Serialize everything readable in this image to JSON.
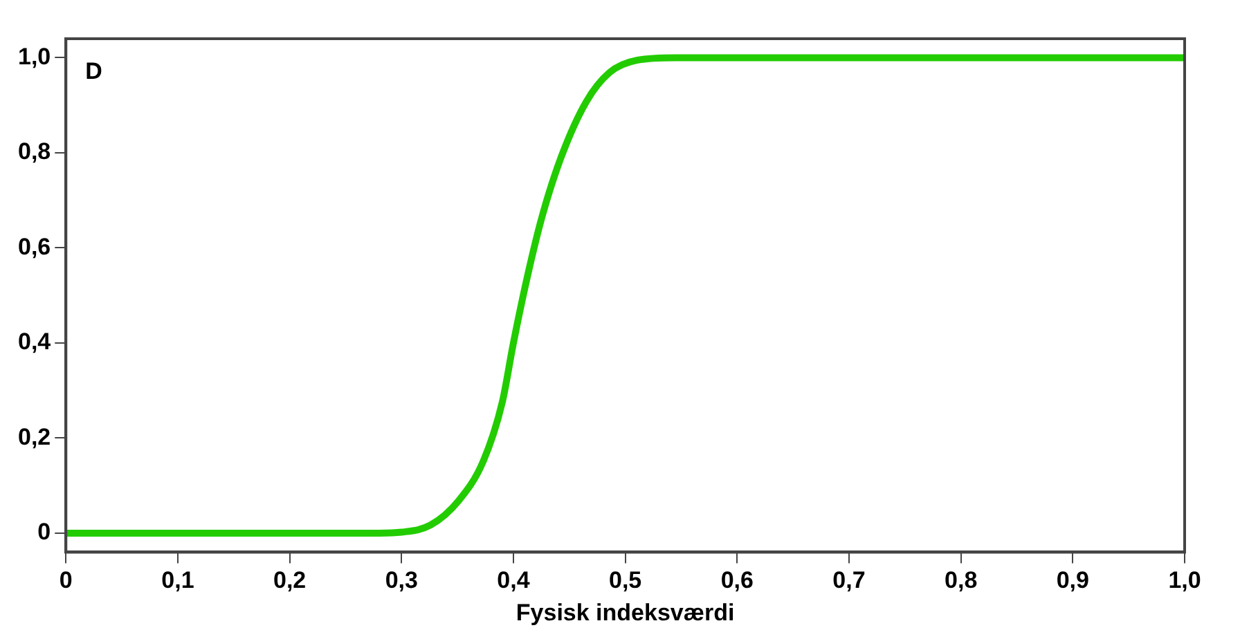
{
  "chart_data": {
    "type": "line",
    "xlabel": "Fysisk indeksværdi",
    "annotations": [
      "D"
    ],
    "x": [
      0,
      0.1,
      0.2,
      0.28,
      0.3,
      0.326,
      0.351,
      0.373,
      0.39,
      0.4,
      0.413,
      0.426,
      0.443,
      0.465,
      0.486,
      0.511,
      0.545,
      0.6,
      0.7,
      0.8,
      0.9,
      1.0
    ],
    "series": [
      {
        "color": "#22cc00",
        "values": [
          0,
          0,
          0,
          0,
          0.002,
          0.017,
          0.068,
          0.151,
          0.275,
          0.4,
          0.545,
          0.669,
          0.793,
          0.907,
          0.969,
          0.995,
          1,
          1,
          1,
          1,
          1,
          1
        ]
      }
    ],
    "xlim": [
      0,
      1
    ],
    "xticks": [
      0,
      {
        "value": 0.1,
        "label": "0,1"
      },
      {
        "value": 0.2,
        "label": "0,2"
      },
      {
        "value": 0.3,
        "label": "0,3"
      },
      {
        "value": 0.4,
        "label": "0,4"
      },
      {
        "value": 0.5,
        "label": "0,5"
      },
      {
        "value": 0.6,
        "label": "0,6"
      },
      {
        "value": 0.7,
        "label": "0,7"
      },
      {
        "value": 0.8,
        "label": "0,8"
      },
      {
        "value": 0.9,
        "label": "0,9"
      },
      {
        "value": 1,
        "label": "1,0"
      }
    ],
    "ylim": [
      -0.04,
      1.04
    ],
    "yticks": [
      0,
      {
        "value": 0.2,
        "label": "0,2"
      },
      {
        "value": 0.4,
        "label": "0,4"
      },
      {
        "value": 0.6,
        "label": "0,6"
      },
      {
        "value": 0.8,
        "label": "0,8"
      },
      {
        "value": 1,
        "label": "1,0"
      }
    ],
    "grid": false,
    "legend": false,
    "marker": "none",
    "line_style": "solid"
  }
}
